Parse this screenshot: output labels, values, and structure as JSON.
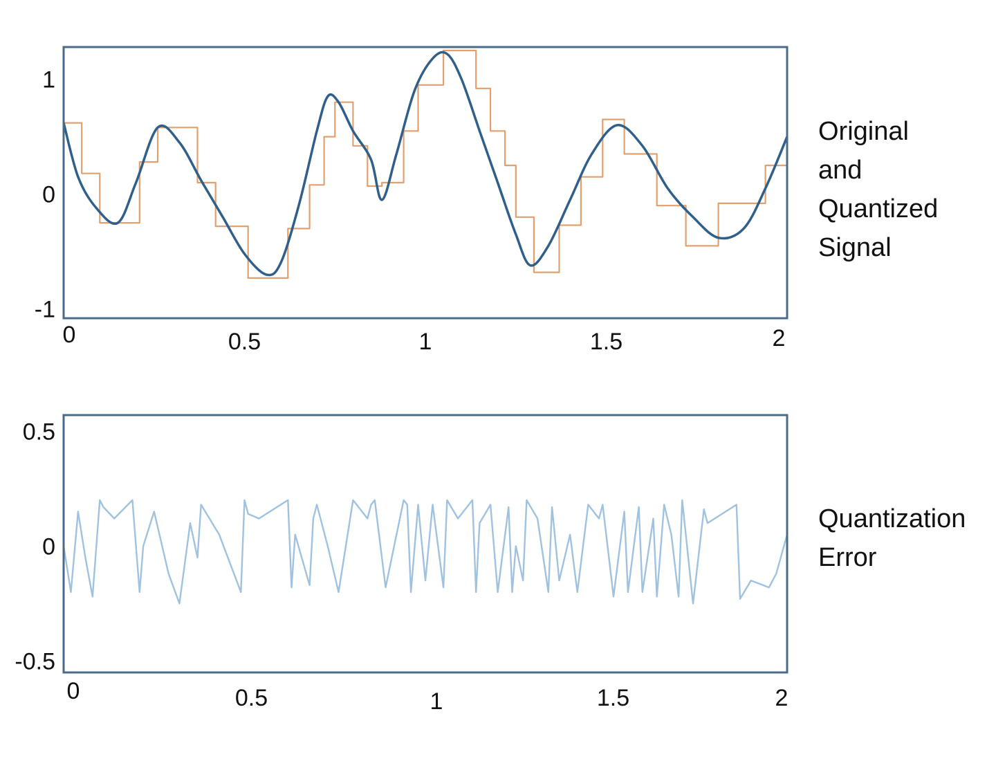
{
  "chart_data": [
    {
      "type": "line",
      "title": "",
      "xlabel": "",
      "ylabel": "",
      "side_label": [
        "Original",
        "and",
        "Quantized",
        "Signal"
      ],
      "xlim": [
        0,
        2
      ],
      "ylim": [
        -1.08,
        1.28
      ],
      "xticks": [
        {
          "value": 0,
          "label": "0"
        },
        {
          "value": 0.5,
          "label": "0.5"
        },
        {
          "value": 1,
          "label": "1"
        },
        {
          "value": 1.5,
          "label": "1.5"
        },
        {
          "value": 2,
          "label": "2"
        }
      ],
      "yticks": [
        {
          "value": 1,
          "label": "1"
        },
        {
          "value": 0,
          "label": "0"
        },
        {
          "value": -1,
          "label": "-1"
        }
      ],
      "grid": false,
      "colors": {
        "original": "#2f5f8a",
        "quantized": "#e0a070",
        "frame": "#4a6b88"
      },
      "series": [
        {
          "key": "original",
          "style": "smooth",
          "x": [
            0,
            0.04,
            0.09,
            0.15,
            0.2,
            0.26,
            0.32,
            0.38,
            0.44,
            0.5,
            0.56,
            0.6,
            0.65,
            0.7,
            0.73,
            0.76,
            0.8,
            0.85,
            0.88,
            0.92,
            0.97,
            1.02,
            1.06,
            1.1,
            1.15,
            1.2,
            1.25,
            1.29,
            1.34,
            1.4,
            1.46,
            1.53,
            1.6,
            1.67,
            1.74,
            1.81,
            1.88,
            1.94,
            2.0
          ],
          "y": [
            0.62,
            0.15,
            -0.12,
            -0.25,
            0.1,
            0.58,
            0.45,
            0.12,
            -0.2,
            -0.52,
            -0.7,
            -0.6,
            -0.1,
            0.55,
            0.85,
            0.8,
            0.55,
            0.3,
            -0.05,
            0.35,
            0.9,
            1.18,
            1.22,
            1.0,
            0.55,
            0.1,
            -0.35,
            -0.62,
            -0.45,
            -0.05,
            0.35,
            0.6,
            0.42,
            0.05,
            -0.2,
            -0.38,
            -0.3,
            0.05,
            0.5
          ]
        },
        {
          "key": "quantized",
          "style": "step",
          "x": [
            0,
            0.05,
            0.1,
            0.21,
            0.26,
            0.37,
            0.42,
            0.51,
            0.62,
            0.68,
            0.72,
            0.75,
            0.8,
            0.84,
            0.88,
            0.94,
            0.98,
            1.05,
            1.14,
            1.18,
            1.22,
            1.25,
            1.3,
            1.37,
            1.43,
            1.49,
            1.55,
            1.64,
            1.72,
            1.81,
            1.94,
            2.0
          ],
          "y": [
            0.62,
            0.18,
            -0.25,
            0.28,
            0.58,
            0.1,
            -0.28,
            -0.73,
            -0.3,
            0.08,
            0.5,
            0.8,
            0.42,
            0.07,
            0.1,
            0.55,
            0.95,
            1.25,
            0.92,
            0.55,
            0.25,
            -0.2,
            -0.68,
            -0.27,
            0.15,
            0.65,
            0.35,
            -0.1,
            -0.45,
            -0.08,
            0.25,
            0.25
          ]
        }
      ]
    },
    {
      "type": "line",
      "title": "",
      "xlabel": "",
      "ylabel": "",
      "side_label": [
        "Quantization",
        "Error"
      ],
      "xlim": [
        0,
        2
      ],
      "ylim": [
        -0.55,
        0.57
      ],
      "xticks": [
        {
          "value": 0,
          "label": "0"
        },
        {
          "value": 0.5,
          "label": "0.5"
        },
        {
          "value": 1,
          "label": "1"
        },
        {
          "value": 1.5,
          "label": "1.5"
        },
        {
          "value": 2,
          "label": "2"
        }
      ],
      "yticks": [
        {
          "value": 0.5,
          "label": "0.5"
        },
        {
          "value": 0,
          "label": "0"
        },
        {
          "value": -0.5,
          "label": "-0.5"
        }
      ],
      "grid": false,
      "colors": {
        "error": "#9fc2e0",
        "frame": "#4a6b88"
      },
      "series": [
        {
          "key": "error",
          "style": "polyline",
          "x": [
            0,
            0.02,
            0.04,
            0.06,
            0.08,
            0.1,
            0.11,
            0.14,
            0.19,
            0.21,
            0.22,
            0.25,
            0.29,
            0.32,
            0.35,
            0.37,
            0.38,
            0.43,
            0.49,
            0.5,
            0.51,
            0.54,
            0.62,
            0.63,
            0.64,
            0.68,
            0.69,
            0.7,
            0.73,
            0.76,
            0.8,
            0.84,
            0.85,
            0.86,
            0.89,
            0.94,
            0.95,
            0.96,
            0.98,
            1.0,
            1.02,
            1.05,
            1.06,
            1.09,
            1.13,
            1.14,
            1.15,
            1.18,
            1.2,
            1.23,
            1.24,
            1.25,
            1.27,
            1.28,
            1.31,
            1.34,
            1.35,
            1.37,
            1.4,
            1.42,
            1.45,
            1.48,
            1.49,
            1.52,
            1.55,
            1.56,
            1.59,
            1.6,
            1.63,
            1.64,
            1.66,
            1.68,
            1.7,
            1.71,
            1.74,
            1.77,
            1.78,
            1.8,
            1.86,
            1.87,
            1.9,
            1.95,
            1.97,
            2.0
          ],
          "y": [
            0.0,
            -0.2,
            0.15,
            -0.05,
            -0.22,
            0.2,
            0.17,
            0.12,
            0.2,
            -0.2,
            0.0,
            0.15,
            -0.12,
            -0.25,
            0.1,
            -0.05,
            0.18,
            0.05,
            -0.2,
            0.2,
            0.14,
            0.12,
            0.2,
            -0.18,
            0.05,
            -0.17,
            0.12,
            0.18,
            0.0,
            -0.2,
            0.2,
            0.12,
            0.18,
            0.2,
            -0.18,
            0.2,
            0.18,
            -0.2,
            0.18,
            -0.15,
            0.18,
            -0.18,
            0.2,
            0.12,
            0.2,
            -0.2,
            0.1,
            0.18,
            -0.2,
            0.17,
            -0.2,
            0.0,
            -0.15,
            0.2,
            0.12,
            -0.2,
            0.17,
            -0.15,
            0.05,
            -0.2,
            0.18,
            0.12,
            0.18,
            -0.22,
            0.15,
            -0.2,
            0.17,
            -0.2,
            0.12,
            -0.22,
            0.18,
            0.05,
            -0.22,
            0.2,
            -0.25,
            0.16,
            0.1,
            0.12,
            0.18,
            -0.23,
            -0.15,
            -0.18,
            -0.12,
            0.05
          ]
        }
      ]
    }
  ]
}
